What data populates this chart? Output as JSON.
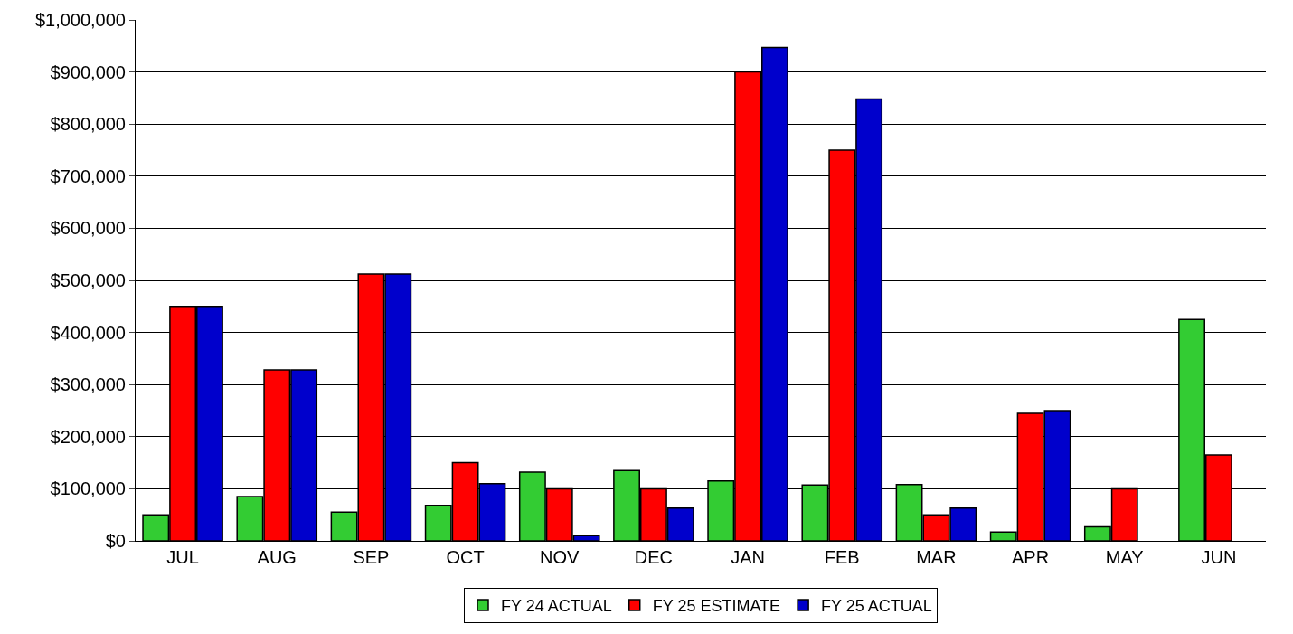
{
  "chart_data": {
    "type": "bar",
    "categories": [
      "JUL",
      "AUG",
      "SEP",
      "OCT",
      "NOV",
      "DEC",
      "JAN",
      "FEB",
      "MAR",
      "APR",
      "MAY",
      "JUN"
    ],
    "series": [
      {
        "name": "FY 24 ACTUAL",
        "color": "#33cc33",
        "values": [
          50000,
          85000,
          55000,
          68000,
          132000,
          135000,
          115000,
          107000,
          108000,
          17000,
          27000,
          425000
        ]
      },
      {
        "name": "FY 25 ESTIMATE",
        "color": "#ff0000",
        "values": [
          450000,
          328000,
          512000,
          150000,
          100000,
          100000,
          900000,
          750000,
          50000,
          245000,
          100000,
          165000
        ]
      },
      {
        "name": "FY 25 ACTUAL",
        "color": "#0000cc",
        "values": [
          450000,
          328000,
          512000,
          110000,
          10000,
          63000,
          947000,
          848000,
          63000,
          250000,
          null,
          null
        ]
      }
    ],
    "ylim": [
      0,
      1000000
    ],
    "yticks": [
      {
        "value": 0,
        "label": "$0"
      },
      {
        "value": 100000,
        "label": "$100,000"
      },
      {
        "value": 200000,
        "label": "$200,000"
      },
      {
        "value": 300000,
        "label": "$300,000"
      },
      {
        "value": 400000,
        "label": "$400,000"
      },
      {
        "value": 500000,
        "label": "$500,000"
      },
      {
        "value": 600000,
        "label": "$600,000"
      },
      {
        "value": 700000,
        "label": "$700,000"
      },
      {
        "value": 800000,
        "label": "$800,000"
      },
      {
        "value": 900000,
        "label": "$900,000"
      },
      {
        "value": 1000000,
        "label": "$1,000,000"
      }
    ],
    "grid": "y",
    "legend": "bottom"
  }
}
